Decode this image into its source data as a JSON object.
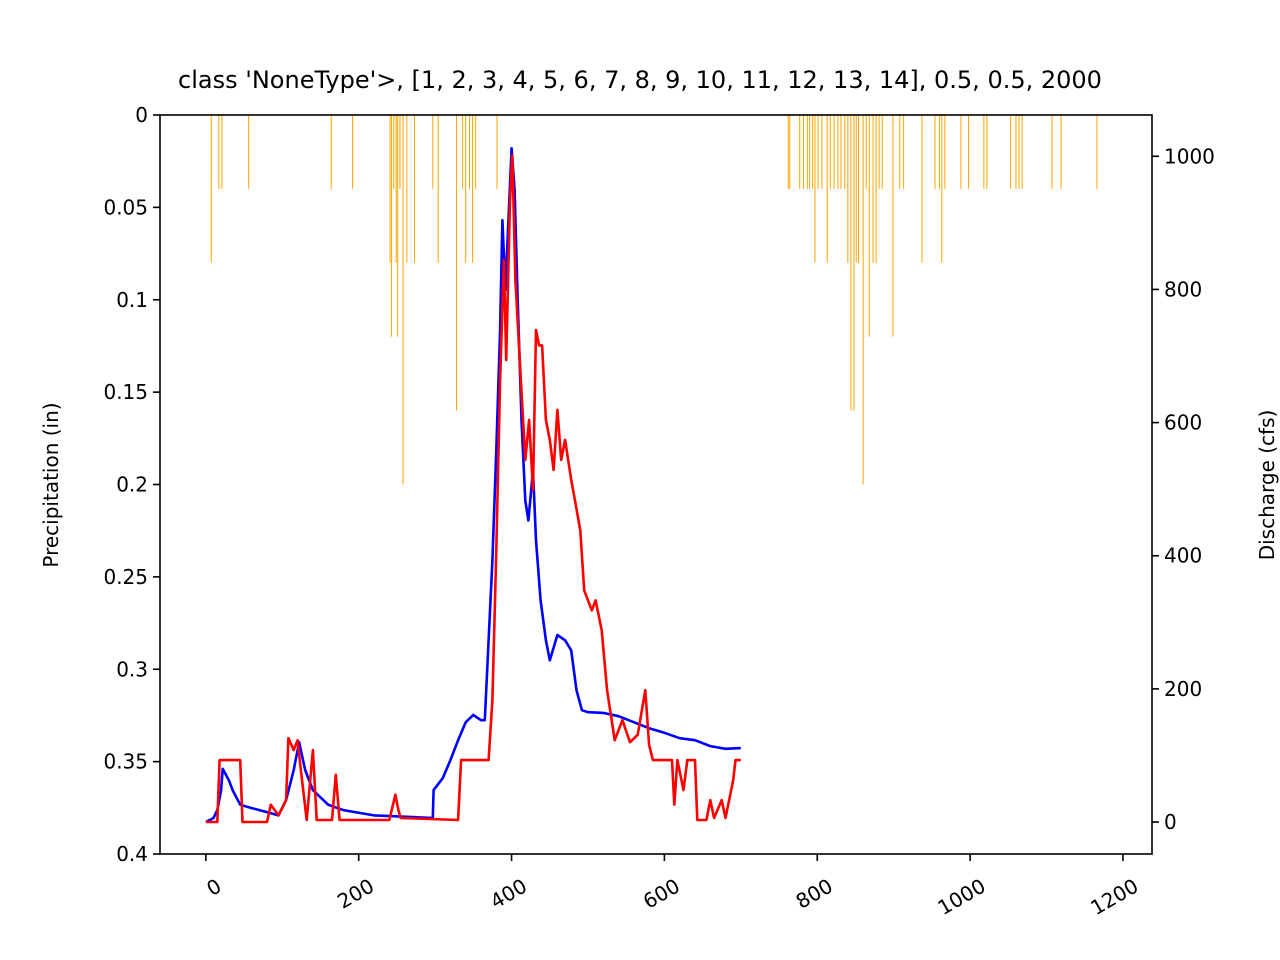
{
  "chart_data": {
    "type": "bar",
    "title": "class 'NoneType'>, [1, 2, 3, 4, 5, 6, 7, 8, 9, 10, 11, 12, 13, 14], 0.5, 0.5, 2000",
    "ylabel": "Precipitation (in)",
    "y2label": "Discharge (cfs)",
    "x": [
      7,
      17,
      21,
      56,
      164,
      192,
      241,
      243,
      246,
      249,
      251,
      254,
      258,
      263,
      273,
      297,
      304,
      328,
      336,
      340,
      345,
      349,
      353,
      381,
      762,
      764,
      777,
      782,
      787,
      790,
      794,
      797,
      801,
      806,
      813,
      817,
      822,
      827,
      831,
      836,
      840,
      844,
      848,
      851,
      854,
      860,
      864,
      868,
      873,
      877,
      881,
      885,
      899,
      908,
      913,
      937,
      954,
      960,
      963,
      967,
      988,
      998,
      1018,
      1022,
      1053,
      1060,
      1064,
      1068,
      1107,
      1119,
      1166
    ],
    "values": [
      0.08,
      0.04,
      0.04,
      0.04,
      0.04,
      0.04,
      0.08,
      0.12,
      0.04,
      0.08,
      0.12,
      0.04,
      0.2,
      0.08,
      0.08,
      0.04,
      0.08,
      0.16,
      0.04,
      0.08,
      0.04,
      0.08,
      0.04,
      0.04,
      0.04,
      0.04,
      0.04,
      0.04,
      0.04,
      0.04,
      0.04,
      0.08,
      0.04,
      0.04,
      0.08,
      0.04,
      0.04,
      0.04,
      0.04,
      0.04,
      0.08,
      0.16,
      0.16,
      0.08,
      0.08,
      0.2,
      0.04,
      0.12,
      0.08,
      0.08,
      0.04,
      0.04,
      0.12,
      0.04,
      0.04,
      0.08,
      0.04,
      0.04,
      0.08,
      0.04,
      0.04,
      0.04,
      0.04,
      0.04,
      0.04,
      0.04,
      0.04,
      0.04,
      0.04,
      0.04,
      0.04
    ],
    "color": "#ffa500",
    "xlim": [
      -60,
      1238
    ],
    "xticks": [
      0,
      200,
      400,
      600,
      800,
      1000,
      1200
    ],
    "ylim": [
      0.4,
      0
    ],
    "yticks": [
      0,
      0.05,
      0.1,
      0.15,
      0.2,
      0.25,
      0.3,
      0.35,
      0.4
    ],
    "y2lim": [
      -48,
      1062
    ],
    "y2ticks": [
      0,
      200,
      400,
      600,
      800,
      1000
    ],
    "series": [
      {
        "type": "line",
        "axis": "y2",
        "color": "#0000ff",
        "x": [
          0,
          10,
          15,
          20,
          22,
          30,
          35,
          45,
          60,
          80,
          95,
          105,
          115,
          122,
          130,
          140,
          160,
          180,
          220,
          260,
          297,
          298,
          310,
          320,
          330,
          340,
          350,
          360,
          365,
          370,
          375,
          380,
          385,
          388,
          392,
          397,
          400,
          404,
          408,
          413,
          418,
          422,
          428,
          432,
          438,
          445,
          450,
          460,
          470,
          478,
          485,
          492,
          500,
          520,
          540,
          560,
          580,
          600,
          620,
          640,
          660,
          680,
          700
        ],
        "values": [
          0,
          6,
          18,
          48,
          80,
          63,
          48,
          26,
          21,
          15,
          10,
          33,
          78,
          120,
          78,
          48,
          26,
          18,
          10,
          8,
          6,
          48,
          66,
          93,
          123,
          150,
          161,
          153,
          153,
          273,
          393,
          559,
          739,
          904,
          799,
          934,
          1012,
          949,
          784,
          604,
          483,
          453,
          529,
          423,
          333,
          273,
          243,
          281,
          273,
          258,
          198,
          168,
          165,
          164,
          159,
          150,
          141,
          134,
          126,
          123,
          114,
          110,
          111
        ]
      },
      {
        "type": "line",
        "axis": "y2",
        "color": "#ff0000",
        "x": [
          0,
          15,
          18,
          45,
          48,
          80,
          85,
          95,
          105,
          108,
          115,
          120,
          125,
          132,
          140,
          145,
          165,
          170,
          175,
          240,
          248,
          252,
          255,
          330,
          334,
          370,
          375,
          380,
          385,
          390,
          393,
          398,
          401,
          405,
          410,
          418,
          423,
          428,
          432,
          436,
          440,
          445,
          450,
          455,
          460,
          465,
          470,
          478,
          483,
          490,
          495,
          505,
          510,
          518,
          525,
          535,
          545,
          555,
          565,
          575,
          580,
          585,
          610,
          613,
          617,
          625,
          630,
          640,
          643,
          655,
          660,
          665,
          675,
          680,
          690,
          693,
          700
        ],
        "values": [
          0,
          0,
          93,
          93,
          0,
          0,
          26,
          10,
          33,
          126,
          108,
          123,
          71,
          3,
          108,
          3,
          3,
          71,
          3,
          3,
          41,
          18,
          6,
          3,
          93,
          93,
          183,
          408,
          664,
          844,
          694,
          934,
          1002,
          814,
          709,
          544,
          604,
          499,
          739,
          716,
          716,
          604,
          574,
          529,
          619,
          544,
          574,
          514,
          483,
          438,
          348,
          318,
          333,
          288,
          198,
          123,
          153,
          120,
          131,
          198,
          116,
          93,
          93,
          26,
          93,
          48,
          93,
          93,
          3,
          3,
          33,
          6,
          33,
          6,
          63,
          93,
          93
        ]
      }
    ]
  }
}
